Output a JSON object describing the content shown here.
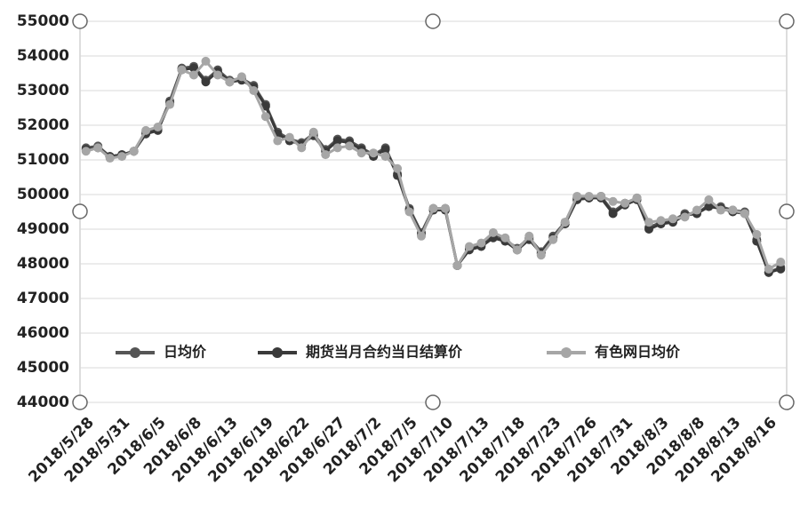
{
  "chart_data": {
    "type": "line",
    "categories": [
      "2018/5/28",
      null,
      null,
      "2018/5/31",
      null,
      null,
      "2018/6/5",
      null,
      null,
      "2018/6/8",
      null,
      null,
      "2018/6/13",
      null,
      null,
      "2018/6/19",
      null,
      null,
      "2018/6/22",
      null,
      null,
      "2018/6/27",
      null,
      null,
      "2018/7/2",
      null,
      null,
      "2018/7/5",
      null,
      null,
      "2018/7/10",
      null,
      null,
      "2018/7/13",
      null,
      null,
      "2018/7/18",
      null,
      null,
      "2018/7/23",
      null,
      null,
      "2018/7/26",
      null,
      null,
      "2018/7/31",
      null,
      null,
      "2018/8/3",
      null,
      null,
      "2018/8/8",
      null,
      null,
      "2018/8/13",
      null,
      null,
      "2018/8/16",
      null
    ],
    "series": [
      {
        "name": "日均价",
        "color": "#555555",
        "values": [
          51350,
          51400,
          51100,
          51150,
          51250,
          51800,
          51900,
          52700,
          53650,
          53700,
          53300,
          53600,
          53300,
          53350,
          53150,
          52600,
          51800,
          51600,
          51500,
          51750,
          51300,
          51600,
          51550,
          51350,
          51150,
          51350,
          50600,
          49600,
          48900,
          49600,
          49600,
          47950,
          48450,
          48550,
          48800,
          48700,
          48450,
          48750,
          48350,
          48800,
          49200,
          49900,
          49900,
          49950,
          49500,
          49750,
          49900,
          49050,
          49200,
          49250,
          49450,
          49450,
          49700,
          49650,
          49550,
          49500,
          48700,
          47750,
          47900
        ]
      },
      {
        "name": "期货当月合约当日结算价",
        "color": "#3a3a3a",
        "values": [
          51300,
          51350,
          51100,
          51150,
          51250,
          51750,
          51850,
          52650,
          53600,
          53650,
          53250,
          53550,
          53250,
          53300,
          53100,
          52550,
          51750,
          51550,
          51450,
          51700,
          51250,
          51550,
          51500,
          51300,
          51100,
          51300,
          50550,
          49550,
          48850,
          49550,
          49550,
          47950,
          48400,
          48500,
          48750,
          48650,
          48400,
          48700,
          48300,
          48750,
          49150,
          49850,
          49900,
          49900,
          49450,
          49700,
          49850,
          49000,
          49150,
          49200,
          49400,
          49450,
          49650,
          49600,
          49500,
          49450,
          48650,
          47750,
          47850
        ]
      },
      {
        "name": "有色网日均价",
        "color": "#a6a6a6",
        "values": [
          51250,
          51350,
          51050,
          51100,
          51250,
          51850,
          51950,
          52600,
          53600,
          53450,
          53850,
          53450,
          53250,
          53400,
          53000,
          52250,
          51550,
          51650,
          51350,
          51800,
          51150,
          51350,
          51400,
          51200,
          51200,
          51100,
          50750,
          49500,
          48800,
          49600,
          49600,
          47950,
          48500,
          48600,
          48900,
          48750,
          48400,
          48800,
          48250,
          48700,
          49200,
          49950,
          49950,
          49950,
          49800,
          49750,
          49900,
          49200,
          49250,
          49300,
          49350,
          49550,
          49850,
          49550,
          49550,
          49450,
          48850,
          47850,
          48050
        ]
      }
    ],
    "ylim": [
      44000,
      55000
    ],
    "yticks": [
      44000,
      45000,
      46000,
      47000,
      48000,
      49000,
      50000,
      51000,
      52000,
      53000,
      54000,
      55000
    ],
    "grid": true,
    "legend": "bottom"
  }
}
